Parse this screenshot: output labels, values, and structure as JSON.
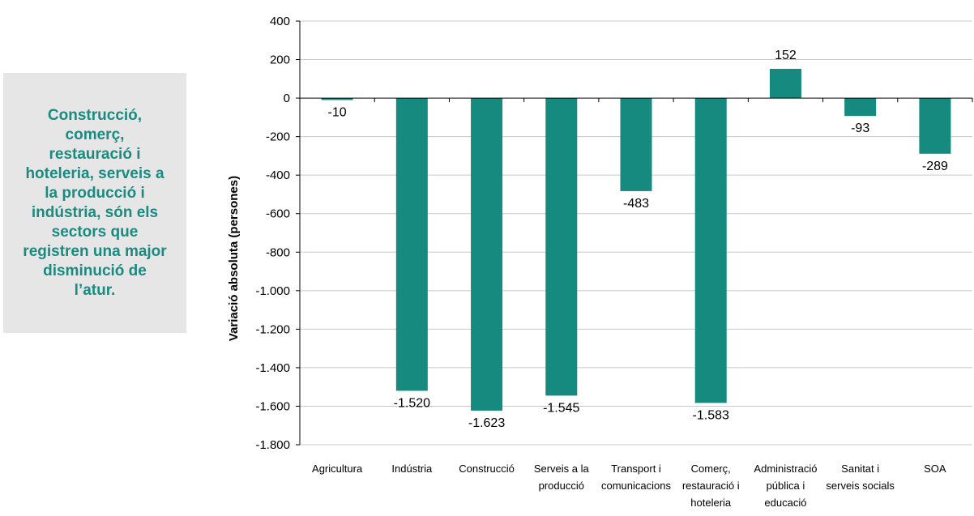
{
  "callout": {
    "text": "Construcció,\ncomerç,\nrestauració i\nhoteleria, serveis a\nla producció i\nindústria, són els\nsectors que\nregistren una major\ndisminució de\nl’atur."
  },
  "colors": {
    "bar": "#178a80",
    "callout_text": "#1b8a80",
    "callout_bg": "#e6e6e6",
    "grid": "#c8c8c8"
  },
  "chart_data": {
    "type": "bar",
    "title": "",
    "xlabel": "",
    "ylabel": "Variació absoluta (persones)",
    "ylim": [
      -1800,
      400
    ],
    "yticks": [
      400,
      200,
      0,
      -200,
      -400,
      -600,
      -800,
      -1000,
      -1200,
      -1400,
      -1600,
      -1800
    ],
    "ytick_labels": [
      "400",
      "200",
      "0",
      "-200",
      "-400",
      "-600",
      "-800",
      "-1.000",
      "-1.200",
      "-1.400",
      "-1.600",
      "-1.800"
    ],
    "grid": true,
    "categories": [
      [
        "Agricultura"
      ],
      [
        "Indústria"
      ],
      [
        "Construcció"
      ],
      [
        "Serveis a la",
        "producció"
      ],
      [
        "Transport i",
        "comunicacions"
      ],
      [
        "Comerç,",
        "restauració i",
        "hoteleria"
      ],
      [
        "Administració",
        "pública i",
        "educació"
      ],
      [
        "Sanitat i",
        "serveis socials"
      ],
      [
        "SOA"
      ]
    ],
    "values": [
      -10,
      -1520,
      -1623,
      -1545,
      -483,
      -1583,
      152,
      -93,
      -289
    ],
    "value_labels": [
      "-10",
      "-1.520",
      "-1.623",
      "-1.545",
      "-483",
      "-1.583",
      "152",
      "-93",
      "-289"
    ]
  }
}
